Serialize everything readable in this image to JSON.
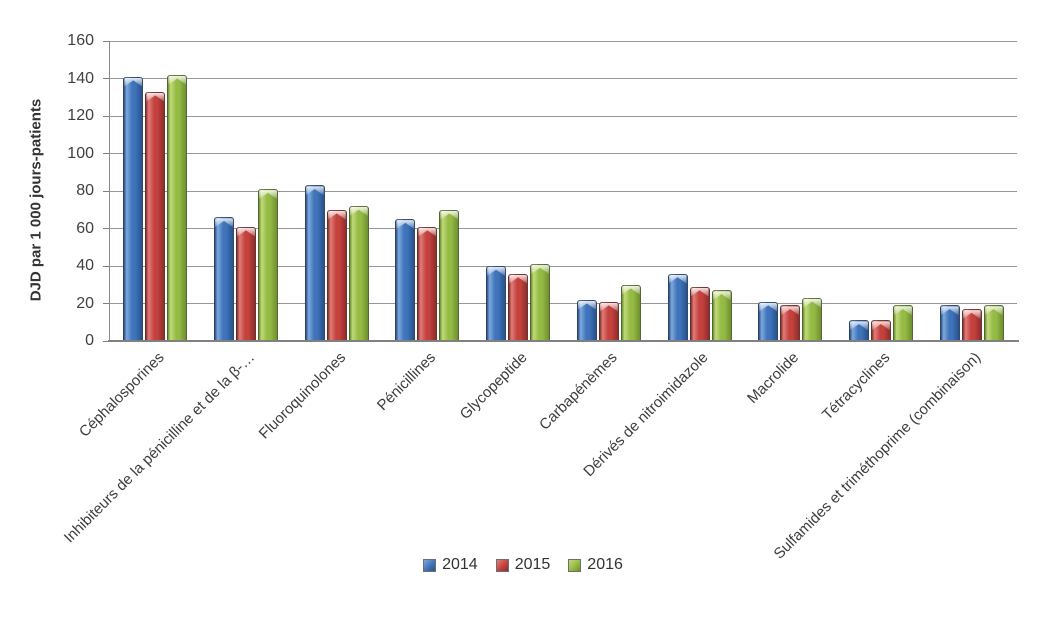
{
  "chart_data": {
    "type": "bar",
    "title": "",
    "xlabel": "",
    "ylabel": "DJD par 1 000 jours-patients",
    "ylim": [
      0,
      160
    ],
    "ytick_step": 20,
    "grid": true,
    "legend_position": "bottom",
    "categories": [
      "Céphalosporines",
      "Inhibiteurs de la pénicilline et de la β-…",
      "Fluoroquinolones",
      "Pénicillines",
      "Glycopeptide",
      "Carbapénèmes",
      "Dérivés de nitroimidazole",
      "Macrolide",
      "Tétracyclines",
      "Sulfamides et triméthoprime (combinaison)"
    ],
    "series": [
      {
        "name": "2014",
        "fill": "#3F74BA",
        "fill_light": "#7FA9DC",
        "fill_dark": "#27528D",
        "values": [
          141,
          66,
          83,
          65,
          40,
          22,
          36,
          21,
          11,
          19
        ]
      },
      {
        "name": "2015",
        "fill": "#C4423E",
        "fill_light": "#E07D7A",
        "fill_dark": "#8F2D2A",
        "values": [
          133,
          61,
          70,
          61,
          36,
          21,
          29,
          19,
          11,
          17
        ]
      },
      {
        "name": "2016",
        "fill": "#95BB45",
        "fill_light": "#C0DA7A",
        "fill_dark": "#6E912F",
        "values": [
          142,
          81,
          72,
          70,
          41,
          30,
          27,
          23,
          19,
          19
        ]
      }
    ]
  },
  "colors": {
    "gridline": "#979797",
    "axis": "#808080",
    "text": "#404040",
    "background": "#FFFFFF"
  }
}
